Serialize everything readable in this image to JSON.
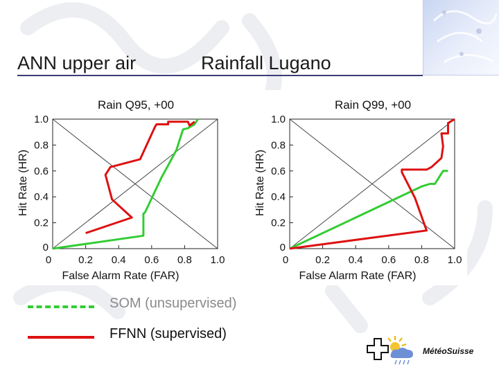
{
  "header": {
    "title_left": "ANN upper air",
    "title_right": "Rainfall Lugano"
  },
  "legend": {
    "items": [
      {
        "label": "SOM (unsupervised)",
        "color": "#33cc33",
        "style": "dashed"
      },
      {
        "label": "FFNN (supervised)",
        "color": "#dd1111",
        "style": "solid"
      }
    ]
  },
  "brand": {
    "name": "MeteoSuisse",
    "display": "MétéoSuisse"
  },
  "chart_data": [
    {
      "type": "line",
      "title": "Rain Q95, +00",
      "xlabel": "False Alarm Rate (FAR)",
      "ylabel": "Hit Rate (HR)",
      "xlim": [
        0,
        1
      ],
      "ylim": [
        0,
        1
      ],
      "xticks": [
        "0",
        "0.2",
        "0.4",
        "0.6",
        "0.8",
        "1.0"
      ],
      "yticks": [
        "0",
        "0.2",
        "0.4",
        "0.6",
        "0.8",
        "1.0"
      ],
      "grid": false,
      "series": [
        {
          "name": "SOM (unsupervised)",
          "color": "#33cc33",
          "x": [
            0,
            0.55,
            0.55,
            0.56,
            0.66,
            0.75,
            0.79,
            0.82,
            0.86,
            0.88
          ],
          "y": [
            0,
            0.1,
            0.27,
            0.28,
            0.55,
            0.76,
            0.92,
            0.93,
            0.96,
            1.0
          ]
        },
        {
          "name": "FFNN (supervised)",
          "color": "#dd1111",
          "x": [
            0.2,
            0.48,
            0.36,
            0.32,
            0.35,
            0.53,
            0.62,
            0.63,
            0.7,
            0.7,
            0.82,
            0.83,
            0.86
          ],
          "y": [
            0.12,
            0.24,
            0.38,
            0.57,
            0.63,
            0.69,
            0.94,
            0.96,
            0.96,
            0.98,
            0.98,
            0.95,
            0.98
          ]
        }
      ]
    },
    {
      "type": "line",
      "title": "Rain Q99, +00",
      "xlabel": "False Alarm Rate (FAR)",
      "ylabel": "Hit Rate (HR)",
      "xlim": [
        0,
        1
      ],
      "ylim": [
        0,
        1
      ],
      "xticks": [
        "0",
        "0.2",
        "0.4",
        "0.6",
        "0.8",
        "1.0"
      ],
      "yticks": [
        "0",
        "0.2",
        "0.4",
        "0.6",
        "0.8",
        "1.0"
      ],
      "grid": false,
      "series": [
        {
          "name": "SOM (unsupervised)",
          "color": "#33cc33",
          "x": [
            0,
            0.8,
            0.85,
            0.88,
            0.93,
            0.96
          ],
          "y": [
            0,
            0.48,
            0.5,
            0.5,
            0.6,
            0.6
          ]
        },
        {
          "name": "FFNN (supervised)",
          "color": "#dd1111",
          "x": [
            0,
            0.83,
            0.76,
            0.68,
            0.68,
            0.83,
            0.86,
            0.92,
            0.93,
            0.92,
            0.96,
            0.96,
            1.0
          ],
          "y": [
            0,
            0.14,
            0.39,
            0.59,
            0.61,
            0.61,
            0.63,
            0.7,
            0.79,
            0.89,
            0.89,
            0.97,
            1.0
          ]
        }
      ]
    }
  ]
}
